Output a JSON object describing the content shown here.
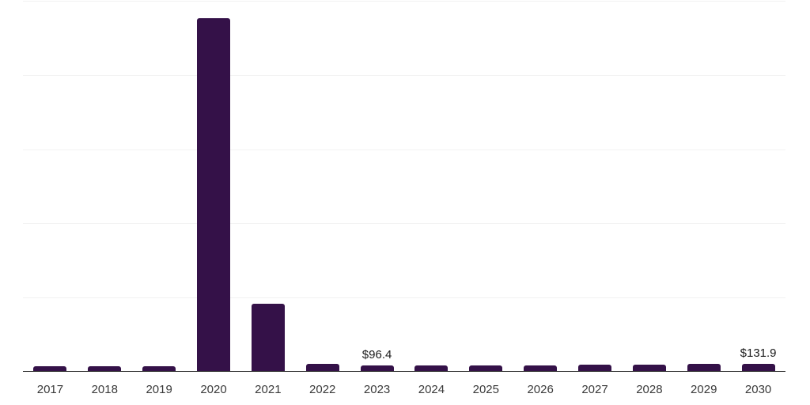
{
  "chart_data": {
    "type": "bar",
    "title": "",
    "xlabel": "",
    "ylabel": "",
    "categories": [
      "2017",
      "2018",
      "2019",
      "2020",
      "2021",
      "2022",
      "2023",
      "2024",
      "2025",
      "2026",
      "2027",
      "2028",
      "2029",
      "2030"
    ],
    "values": [
      84,
      84,
      85,
      6520,
      1250,
      130,
      96.4,
      100.8,
      105.4,
      110.2,
      115.2,
      120.4,
      125.9,
      131.9
    ],
    "data_labels": {
      "2023": "$96.4",
      "2030": "$131.9"
    },
    "ylim": [
      0,
      6860
    ],
    "grid": true,
    "gridline_count": 5,
    "y_tick_labels_visible": false,
    "legend": "none",
    "colors": {
      "bar": "#341148",
      "gridline": "#f2f2f2",
      "axis_line": "#262626",
      "tick_label": "#3a3a3a",
      "data_label": "#1a1a1a",
      "background": "#ffffff"
    }
  }
}
